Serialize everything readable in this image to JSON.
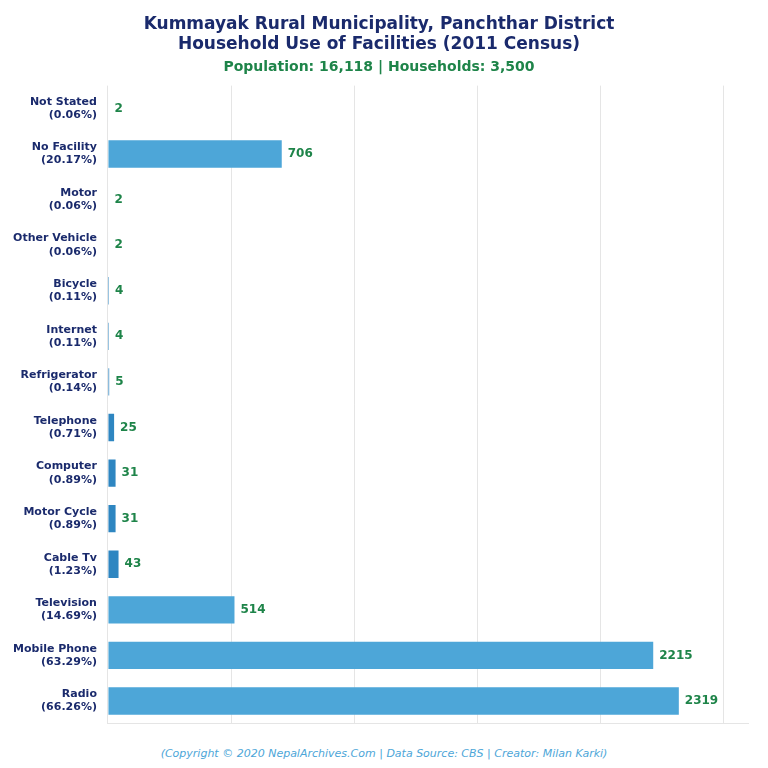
{
  "chart_data": {
    "type": "bar",
    "orientation": "horizontal",
    "title": "Kummayak Rural Municipality, Panchthar District\nHousehold Use of Facilities (2011 Census)",
    "subtitle": "Population: 16,118 | Households: 3,500",
    "annotations": [
      "(Copyright © 2020 NepalArchives.Com | Data Source: CBS | Creator: Milan Karki)"
    ],
    "categories": [
      "Not Stated\n(0.06%)",
      "No Facility\n(20.17%)",
      "Motor\n(0.06%)",
      "Other Vehicle\n(0.06%)",
      "Bicycle\n(0.11%)",
      "Internet\n(0.11%)",
      "Refrigerator\n(0.14%)",
      "Telephone\n(0.71%)",
      "Computer\n(0.89%)",
      "Motor Cycle\n(0.89%)",
      "Cable Tv\n(1.23%)",
      "Television\n(14.69%)",
      "Mobile Phone\n(63.29%)",
      "Radio\n(66.26%)"
    ],
    "values": [
      2,
      706,
      2,
      2,
      4,
      4,
      5,
      25,
      31,
      31,
      43,
      514,
      2215,
      2319
    ],
    "colors": [
      "#2e86c1",
      "#4da6d8",
      "#2e86c1",
      "#2e86c1",
      "#2e86c1",
      "#2e86c1",
      "#2e86c1",
      "#2e86c1",
      "#2e86c1",
      "#2e86c1",
      "#2e86c1",
      "#4da6d8",
      "#4da6d8",
      "#4da6d8"
    ],
    "xlim": [
      0,
      2600
    ],
    "xticks": [
      0,
      500,
      1000,
      1500,
      2000,
      2500
    ],
    "grid": true,
    "data_labels": true,
    "tick_labels": "y"
  }
}
